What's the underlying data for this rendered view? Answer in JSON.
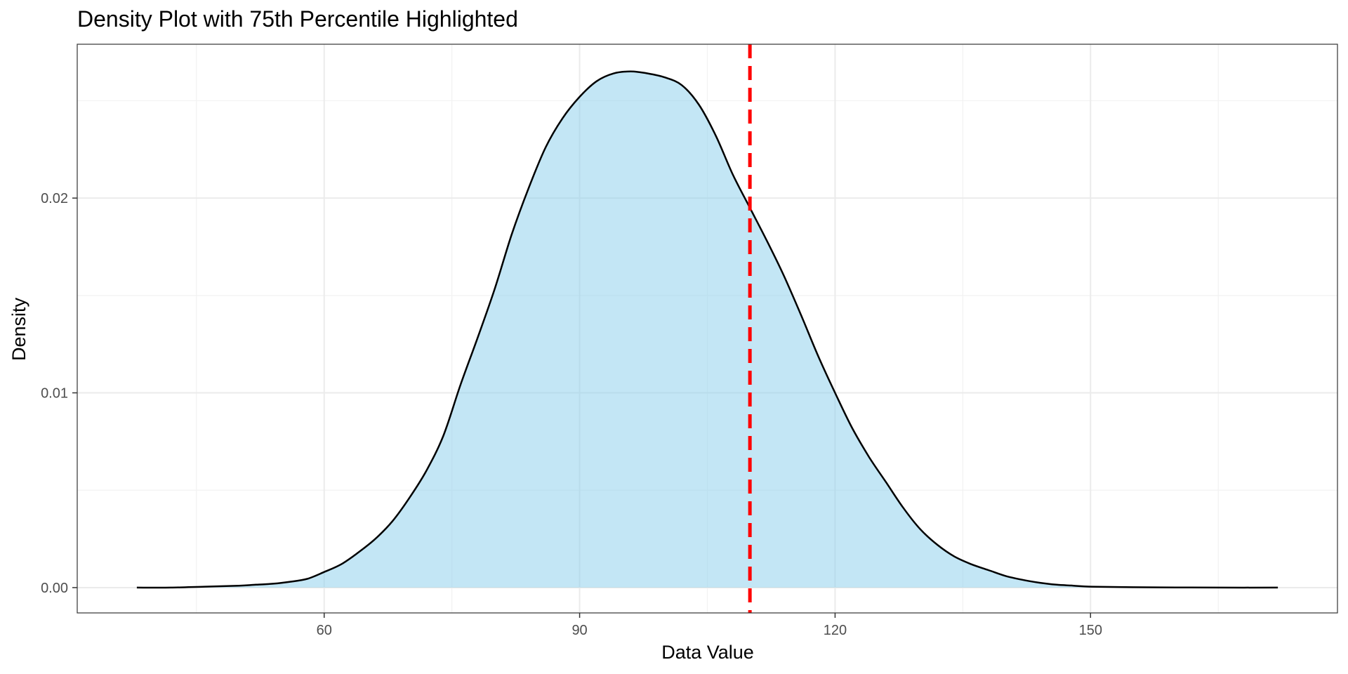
{
  "chart_data": {
    "type": "area",
    "title": "Density Plot with 75th Percentile Highlighted",
    "xlabel": "Data Value",
    "ylabel": "Density",
    "xlim": [
      31,
      179
    ],
    "ylim": [
      -0.0013,
      0.0279
    ],
    "x_ticks": [
      60,
      90,
      120,
      150
    ],
    "x_tick_labels": [
      "60",
      "90",
      "120",
      "150"
    ],
    "y_ticks": [
      0.0,
      0.01,
      0.02
    ],
    "y_tick_labels": [
      "0.00",
      "0.01",
      "0.02"
    ],
    "x_minor_grid": [
      45,
      75,
      105,
      135,
      165
    ],
    "y_minor_grid": [
      0.005,
      0.015,
      0.025
    ],
    "grid": true,
    "percentile_75": 110,
    "series": [
      {
        "x": [
          38,
          42,
          46,
          50,
          52,
          54,
          56,
          58,
          60,
          62,
          64,
          66,
          68,
          70,
          72,
          74,
          76,
          78,
          80,
          82,
          84,
          86,
          88,
          90,
          92,
          94,
          96,
          98,
          100,
          102,
          104,
          106,
          108,
          110,
          112,
          114,
          116,
          118,
          120,
          122,
          124,
          126,
          128,
          130,
          132,
          134,
          136,
          138,
          140,
          142,
          144,
          146,
          148,
          150,
          155,
          160,
          165,
          172
        ],
        "y": [
          0.0,
          0.0,
          5e-05,
          0.0001,
          0.00015,
          0.0002,
          0.0003,
          0.00045,
          0.0008,
          0.0012,
          0.0018,
          0.0025,
          0.0034,
          0.0046,
          0.006,
          0.0078,
          0.0104,
          0.0128,
          0.0153,
          0.0181,
          0.0205,
          0.0226,
          0.0241,
          0.0252,
          0.026,
          0.0264,
          0.0265,
          0.0264,
          0.0262,
          0.0258,
          0.0248,
          0.0232,
          0.0212,
          0.0195,
          0.0178,
          0.016,
          0.014,
          0.0119,
          0.01,
          0.0082,
          0.0067,
          0.0054,
          0.0041,
          0.003,
          0.0022,
          0.0016,
          0.0012,
          0.0009,
          0.0006,
          0.0004,
          0.00025,
          0.00015,
          0.0001,
          5e-05,
          2e-05,
          1e-05,
          0.0,
          0.0
        ]
      }
    ],
    "colors": {
      "fill": "#87ceeb",
      "fill_opacity": 0.5,
      "curve": "#000000",
      "percentile_line": "#ff0000",
      "grid_major": "#ebebeb",
      "grid_minor": "#f2f2f2",
      "panel_border": "#333333",
      "tick_text": "#4d4d4d"
    }
  }
}
